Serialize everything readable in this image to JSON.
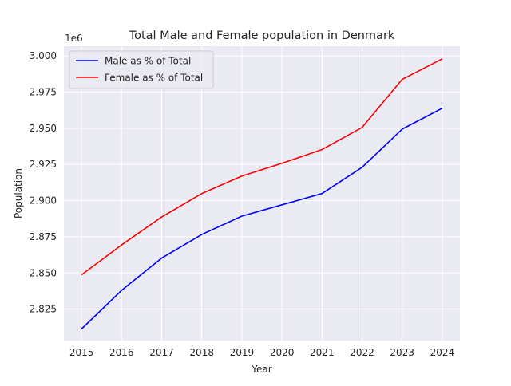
{
  "chart_data": {
    "type": "line",
    "title": "Total Male and Female population in Denmark",
    "xlabel": "Year",
    "ylabel": "Population",
    "y_offset_label": "1e6",
    "x": [
      2015,
      2016,
      2017,
      2018,
      2019,
      2020,
      2021,
      2022,
      2023,
      2024
    ],
    "x_ticks": [
      "2015",
      "2016",
      "2017",
      "2018",
      "2019",
      "2020",
      "2021",
      "2022",
      "2023",
      "2024"
    ],
    "y_ticks": [
      2.825,
      2.85,
      2.875,
      2.9,
      2.925,
      2.95,
      2.975,
      3.0
    ],
    "y_tick_labels": [
      "2.825",
      "2.850",
      "2.875",
      "2.900",
      "2.925",
      "2.950",
      "2.975",
      "3.000"
    ],
    "ylim": [
      2.8033,
      3.0067
    ],
    "xlim": [
      2014.56,
      2024.44
    ],
    "grid": true,
    "legend_position": "top-left",
    "background": "#eaeaf2",
    "series": [
      {
        "name": "Male as % of Total",
        "color": "#0000ff",
        "values": [
          2.8113,
          2.838,
          2.8603,
          2.8766,
          2.8893,
          2.8971,
          2.9049,
          2.923,
          2.9494,
          2.9639
        ]
      },
      {
        "name": "Female as % of Total",
        "color": "#ff0000",
        "values": [
          2.8487,
          2.8694,
          2.8887,
          2.9049,
          2.917,
          2.9258,
          2.9353,
          2.9506,
          2.9838,
          2.998
        ]
      }
    ]
  }
}
